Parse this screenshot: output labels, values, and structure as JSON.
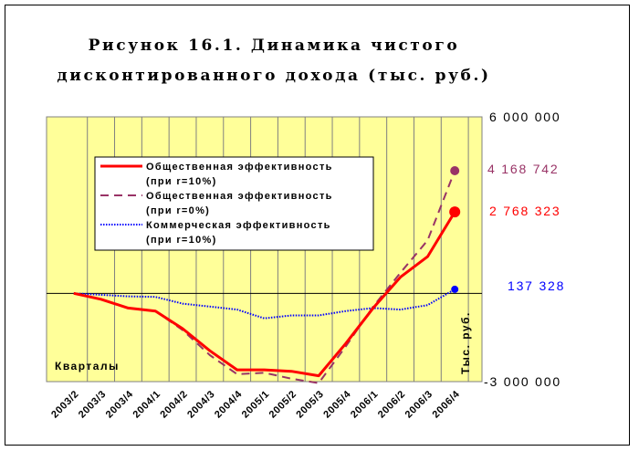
{
  "chart_data": {
    "type": "line",
    "title_line1": "Рисунок 16.1. Динамика чистого",
    "title_line2": "дисконтированного дохода (тыс. руб.)",
    "categories": [
      "2003/2",
      "2003/3",
      "2003/4",
      "2004/1",
      "2004/2",
      "2004/3",
      "2004/4",
      "2005/1",
      "2005/2",
      "2005/3",
      "2005/4",
      "2006/1",
      "2006/2",
      "2006/3",
      "2006/4"
    ],
    "series": [
      {
        "name_line1": "Общественная эффективность",
        "name_line2": "(при r=10%)",
        "style": "solid",
        "color": "#ff0000",
        "values": [
          0,
          -200000,
          -500000,
          -600000,
          -1200000,
          -1950000,
          -2600000,
          -2600000,
          -2650000,
          -2800000,
          -1700000,
          -500000,
          550000,
          1250000,
          2768323
        ]
      },
      {
        "name_line1": "Общественная эффективность",
        "name_line2": "(при r=0%)",
        "style": "dashed",
        "color": "#993366",
        "values": [
          0,
          -200000,
          -500000,
          -600000,
          -1250000,
          -2100000,
          -2750000,
          -2700000,
          -2900000,
          -3050000,
          -1800000,
          -450000,
          700000,
          1800000,
          4168742
        ]
      },
      {
        "name_line1": "Коммерческая эффективность",
        "name_line2": "(при r=10%)",
        "style": "dotted",
        "color": "#0000ff",
        "values": [
          0,
          -50000,
          -100000,
          -120000,
          -350000,
          -450000,
          -550000,
          -850000,
          -750000,
          -750000,
          -600000,
          -500000,
          -550000,
          -400000,
          137328
        ]
      }
    ],
    "ylim": [
      -3000000,
      6000000
    ],
    "y_tick_labels": {
      "top": "6 000 000",
      "bottom": "-3 000 000"
    },
    "end_labels": [
      "4 168 742",
      "2 768 323",
      "137 328"
    ],
    "xlabel": "Кварталы",
    "ylabel": "Тыс. руб.",
    "grid": "vertical",
    "legend_placement": "upper-left inside plot"
  },
  "colors": {
    "plot_background": "#ffff99",
    "r10_end_label": "#ff0000",
    "r0_end_label": "#993366",
    "commercial_end_label": "#0000ff"
  }
}
